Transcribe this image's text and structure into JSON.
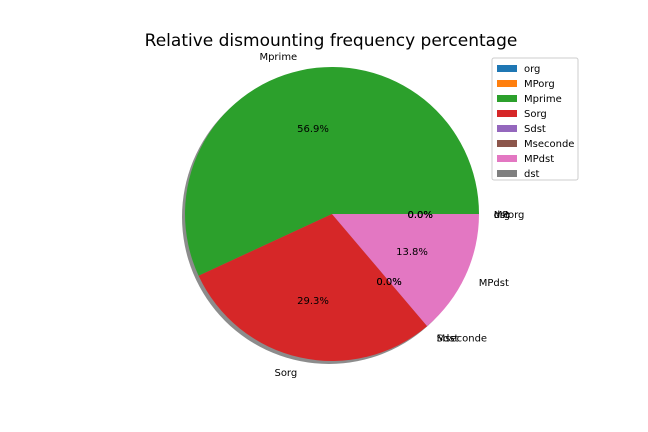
{
  "chart_data": {
    "type": "pie",
    "title": "Relative dismounting frequency percentage",
    "slices": [
      {
        "label": "org",
        "value": 0.0,
        "pct_label": "0.0%",
        "color": "#1f77b4"
      },
      {
        "label": "MPorg",
        "value": 0.0,
        "pct_label": "0.0%",
        "color": "#ff7f0e"
      },
      {
        "label": "Mprime",
        "value": 56.9,
        "pct_label": "56.9%",
        "color": "#2ca02c"
      },
      {
        "label": "Sorg",
        "value": 29.3,
        "pct_label": "29.3%",
        "color": "#d62728"
      },
      {
        "label": "Sdst",
        "value": 0.0,
        "pct_label": "0.0%",
        "color": "#9467bd"
      },
      {
        "label": "Mseconde",
        "value": 0.0,
        "pct_label": "0.0%",
        "color": "#8c564b"
      },
      {
        "label": "MPdst",
        "value": 13.8,
        "pct_label": "13.8%",
        "color": "#e377c2"
      },
      {
        "label": "dst",
        "value": 0.0,
        "pct_label": "0.0%",
        "color": "#7f7f7f"
      }
    ],
    "shadow": true,
    "legend_position": "top-right"
  }
}
